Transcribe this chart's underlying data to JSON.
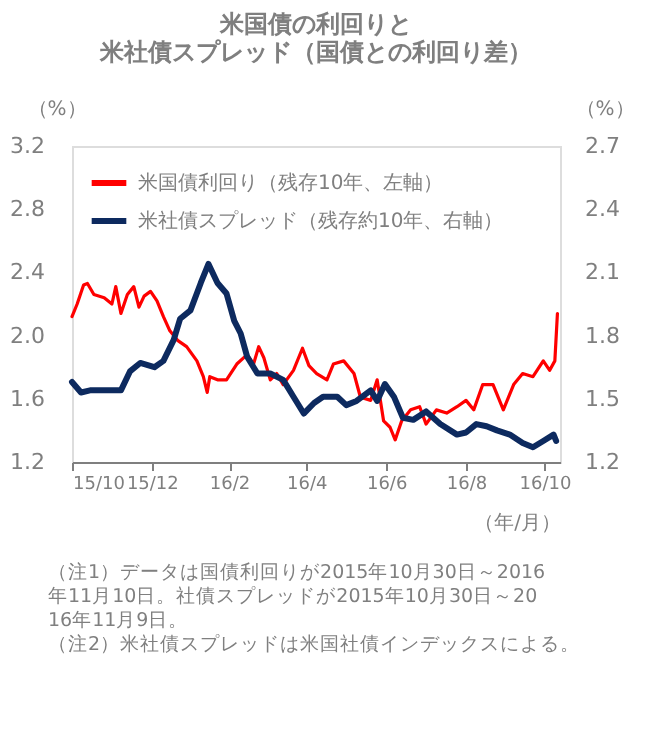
{
  "chart_data": {
    "type": "line",
    "title": [
      "米国債の利回りと",
      "米社債スプレッド（国債との利回り差）"
    ],
    "xlabel": "（年/月）",
    "ylabel": "（%）",
    "y2label": "（%）",
    "xlim": [
      "2015-10-30",
      "2016-11-12"
    ],
    "xticks": [
      {
        "value": "2015-10-30",
        "label": "15/10"
      },
      {
        "value": "2015-12-31",
        "label": "15/12"
      },
      {
        "value": "2016-02-29",
        "label": "16/2"
      },
      {
        "value": "2016-04-29",
        "label": "16/4"
      },
      {
        "value": "2016-06-30",
        "label": "16/6"
      },
      {
        "value": "2016-08-31",
        "label": "16/8"
      },
      {
        "value": "2016-10-31",
        "label": "16/10"
      }
    ],
    "ylim": [
      1.2,
      3.2
    ],
    "yticks": [
      1.2,
      1.6,
      {
        "value": 2,
        "label": "2.0"
      },
      2.4,
      2.8,
      3.2
    ],
    "y2lim": [
      1.2,
      2.7
    ],
    "y2ticks": [
      1.2,
      1.5,
      1.8,
      2.1,
      2.4,
      2.7
    ],
    "grid": false,
    "legend": "top left",
    "series": [
      {
        "name": "米国債利回り（残存10年、左軸）",
        "color": "#ff0000",
        "x": [
          "2015-10-30",
          "2015-11-03",
          "2015-11-08",
          "2015-11-11",
          "2015-11-16",
          "2015-11-24",
          "2015-11-30",
          "2015-12-03",
          "2015-12-07",
          "2015-12-12",
          "2015-12-17",
          "2015-12-21",
          "2015-12-25",
          "2015-12-30",
          "2016-01-04",
          "2016-01-09",
          "2016-01-14",
          "2016-01-20",
          "2016-01-27",
          "2016-02-04",
          "2016-02-09",
          "2016-02-12",
          "2016-02-14",
          "2016-02-20",
          "2016-02-27",
          "2016-03-06",
          "2016-03-14",
          "2016-03-19",
          "2016-03-23",
          "2016-03-27",
          "2016-04-01",
          "2016-04-06",
          "2016-04-11",
          "2016-04-19",
          "2016-04-26",
          "2016-05-01",
          "2016-05-07",
          "2016-05-15",
          "2016-05-20",
          "2016-05-28",
          "2016-06-05",
          "2016-06-10",
          "2016-06-18",
          "2016-06-23",
          "2016-06-28",
          "2016-07-03",
          "2016-07-07",
          "2016-07-12",
          "2016-07-19",
          "2016-07-26",
          "2016-07-31",
          "2016-08-08",
          "2016-08-16",
          "2016-08-24",
          "2016-08-31",
          "2016-09-06",
          "2016-09-13",
          "2016-09-21",
          "2016-09-29",
          "2016-10-07",
          "2016-10-14",
          "2016-10-22",
          "2016-10-30",
          "2016-11-04",
          "2016-11-08",
          "2016-11-10"
        ],
        "values": [
          2.12,
          2.2,
          2.32,
          2.33,
          2.26,
          2.24,
          2.2,
          2.31,
          2.14,
          2.26,
          2.31,
          2.18,
          2.25,
          2.28,
          2.22,
          2.12,
          2.03,
          1.97,
          1.93,
          1.84,
          1.74,
          1.64,
          1.74,
          1.72,
          1.72,
          1.82,
          1.88,
          1.82,
          1.93,
          1.86,
          1.72,
          1.76,
          1.69,
          1.78,
          1.92,
          1.81,
          1.76,
          1.72,
          1.82,
          1.84,
          1.76,
          1.61,
          1.59,
          1.72,
          1.46,
          1.42,
          1.34,
          1.46,
          1.53,
          1.55,
          1.44,
          1.53,
          1.51,
          1.55,
          1.59,
          1.53,
          1.69,
          1.69,
          1.53,
          1.69,
          1.76,
          1.74,
          1.84,
          1.78,
          1.84,
          2.14
        ]
      },
      {
        "name": "米社債スプレッド（残存約10年、右軸）",
        "color": "#0d2a5f",
        "axis": "y2",
        "x": [
          "2015-10-30",
          "2015-11-06",
          "2015-11-13",
          "2015-11-24",
          "2015-12-07",
          "2015-12-14",
          "2015-12-22",
          "2016-01-02",
          "2016-01-09",
          "2016-01-17",
          "2016-01-22",
          "2016-01-30",
          "2016-02-07",
          "2016-02-13",
          "2016-02-20",
          "2016-02-27",
          "2016-03-04",
          "2016-03-09",
          "2016-03-14",
          "2016-03-22",
          "2016-04-01",
          "2016-04-11",
          "2016-04-19",
          "2016-04-27",
          "2016-05-05",
          "2016-05-12",
          "2016-05-23",
          "2016-05-30",
          "2016-06-07",
          "2016-06-18",
          "2016-06-23",
          "2016-06-29",
          "2016-07-06",
          "2016-07-13",
          "2016-07-21",
          "2016-07-31",
          "2016-08-11",
          "2016-08-24",
          "2016-08-31",
          "2016-09-08",
          "2016-09-16",
          "2016-09-24",
          "2016-10-04",
          "2016-10-14",
          "2016-10-22",
          "2016-10-30",
          "2016-11-07",
          "2016-11-09"
        ],
        "values": [
          1.58,
          1.53,
          1.54,
          1.54,
          1.54,
          1.63,
          1.67,
          1.65,
          1.68,
          1.78,
          1.88,
          1.92,
          2.05,
          2.14,
          2.05,
          2.0,
          1.87,
          1.81,
          1.7,
          1.62,
          1.62,
          1.59,
          1.51,
          1.43,
          1.48,
          1.51,
          1.51,
          1.47,
          1.49,
          1.54,
          1.49,
          1.57,
          1.51,
          1.41,
          1.4,
          1.44,
          1.38,
          1.33,
          1.34,
          1.38,
          1.37,
          1.35,
          1.33,
          1.29,
          1.27,
          1.3,
          1.33,
          1.3
        ]
      }
    ],
    "annotations": [
      "（注1）データは国債利回りが2015年10月30日～2016年11月10日。社債スプレッドが2015年10月30日～2016年11月9日。",
      "（注2）米社債スプレッドは米国社債インデックスによる。"
    ]
  }
}
